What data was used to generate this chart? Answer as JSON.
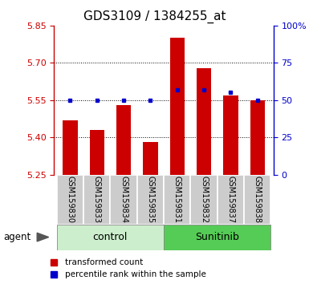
{
  "title": "GDS3109 / 1384255_at",
  "samples": [
    "GSM159830",
    "GSM159833",
    "GSM159834",
    "GSM159835",
    "GSM159831",
    "GSM159832",
    "GSM159837",
    "GSM159838"
  ],
  "red_values": [
    5.47,
    5.43,
    5.53,
    5.38,
    5.8,
    5.68,
    5.57,
    5.55
  ],
  "blue_values": [
    50,
    50,
    50,
    50,
    57,
    57,
    55,
    50
  ],
  "y_min": 5.25,
  "y_max": 5.85,
  "y_ticks": [
    5.25,
    5.4,
    5.55,
    5.7,
    5.85
  ],
  "y2_ticks": [
    0,
    25,
    50,
    75,
    100
  ],
  "y2_labels": [
    "0",
    "25",
    "50",
    "75",
    "100%"
  ],
  "bar_color": "#cc0000",
  "dot_color": "#0000cc",
  "control_bg": "#cceecc",
  "sunitinib_bg": "#55cc55",
  "sample_bg": "#cccccc",
  "agent_label": "agent",
  "legend_bar": "transformed count",
  "legend_dot": "percentile rank within the sample",
  "group_labels": [
    "control",
    "Sunitinib"
  ],
  "title_fontsize": 11,
  "tick_fontsize": 8,
  "sample_fontsize": 7,
  "group_fontsize": 9,
  "legend_fontsize": 7.5
}
